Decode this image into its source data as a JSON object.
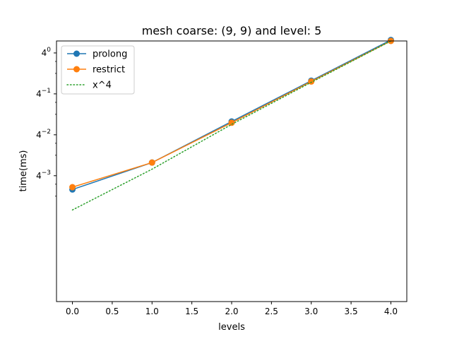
{
  "chart_data": {
    "type": "line",
    "title": "mesh coarse: (9, 9) and level: 5",
    "xlabel": "levels",
    "ylabel": "time(ms)",
    "yscale": "log",
    "log_base": 4,
    "xlim": [
      -0.2,
      4.2
    ],
    "xticks": [
      0.0,
      0.5,
      1.0,
      1.5,
      2.0,
      2.5,
      3.0,
      3.5,
      4.0
    ],
    "xtick_labels": [
      "0.0",
      "0.5",
      "1.0",
      "1.5",
      "2.0",
      "2.5",
      "3.0",
      "3.5",
      "4.0"
    ],
    "ylim": [
      0.00022,
      1.5
    ],
    "yticks": [
      0.015625,
      0.0625,
      0.25,
      1
    ],
    "ytick_labels": [
      {
        "base": "4",
        "exp": "−3"
      },
      {
        "base": "4",
        "exp": "−2"
      },
      {
        "base": "4",
        "exp": "−1"
      },
      {
        "base": "4",
        "exp": "0"
      }
    ],
    "x": [
      0,
      1,
      2,
      3,
      4
    ],
    "grid": false,
    "legend_position": "top-left",
    "series": [
      {
        "name": "prolong",
        "color": "#1f77b4",
        "style": "solid-marker",
        "values": [
          0.0098,
          0.0244,
          0.098,
          0.39,
          1.55
        ]
      },
      {
        "name": "restrict",
        "color": "#ff7f0e",
        "style": "solid-marker",
        "values": [
          0.0106,
          0.0244,
          0.094,
          0.38,
          1.5
        ]
      },
      {
        "name": "x^4",
        "color": "#2ca02c",
        "style": "dotted",
        "values": [
          0.0049,
          0.0195,
          0.089,
          0.37,
          1.5
        ]
      }
    ]
  }
}
